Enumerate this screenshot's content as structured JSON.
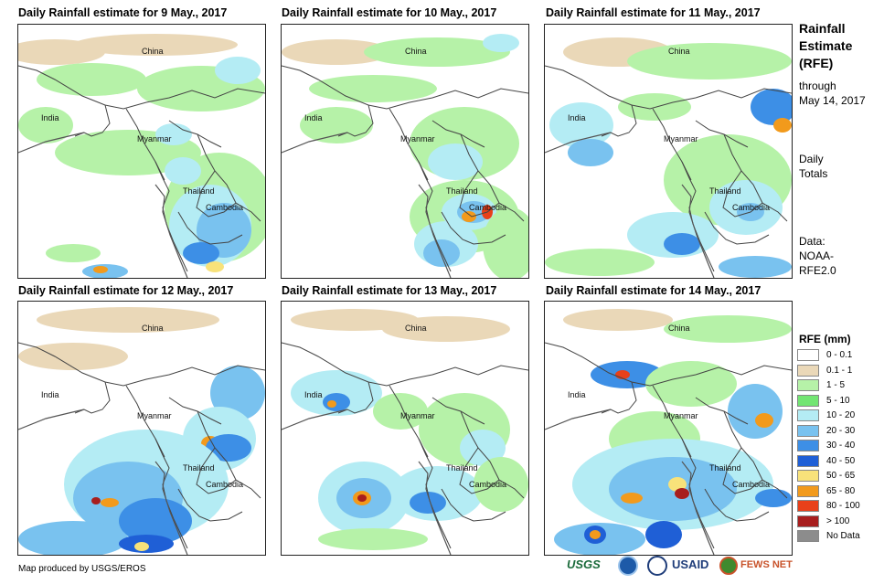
{
  "panels": [
    {
      "title": "Daily Rainfall estimate for 9 May., 2017"
    },
    {
      "title": "Daily Rainfall estimate for 10 May., 2017"
    },
    {
      "title": "Daily Rainfall estimate for 11 May., 2017"
    },
    {
      "title": "Daily Rainfall estimate for 12 May., 2017"
    },
    {
      "title": "Daily Rainfall estimate for 13 May., 2017"
    },
    {
      "title": "Daily Rainfall estimate for 14 May., 2017"
    }
  ],
  "map_labels": {
    "china": "China",
    "india": "India",
    "myanmar": "Myanmar",
    "thailand": "Thailand",
    "cambodia": "Cambodia"
  },
  "sidebar": {
    "title_line1": "Rainfall",
    "title_line2": "Estimate",
    "title_line3": "(RFE)",
    "through": "through",
    "date": "May 14, 2017",
    "daily": "Daily",
    "totals": "Totals",
    "data_label": "Data:",
    "data_src1": "NOAA-",
    "data_src2": "RFE2.0"
  },
  "legend": {
    "title": "RFE (mm)",
    "items": [
      {
        "label": "0 - 0.1",
        "color": "#ffffff"
      },
      {
        "label": "0.1 - 1",
        "color": "#ead8b8"
      },
      {
        "label": "1 - 5",
        "color": "#b6f2a8"
      },
      {
        "label": "5 - 10",
        "color": "#72e572"
      },
      {
        "label": "10 - 20",
        "color": "#b4ecf4"
      },
      {
        "label": "20 - 30",
        "color": "#79c2ef"
      },
      {
        "label": "30 - 40",
        "color": "#3d8fe6"
      },
      {
        "label": "40 - 50",
        "color": "#1f5fd6"
      },
      {
        "label": "50 - 65",
        "color": "#f8e27a"
      },
      {
        "label": "65 - 80",
        "color": "#f29a1c"
      },
      {
        "label": "80 - 100",
        "color": "#e8401a"
      },
      {
        "label": "> 100",
        "color": "#a81e1e"
      },
      {
        "label": "No Data",
        "color": "#8c8c8c"
      }
    ]
  },
  "credit": "Map produced by USGS/EROS",
  "logos": {
    "usgs": "USGS",
    "usaid": "USAID",
    "fewsnet": "FEWS NET"
  }
}
